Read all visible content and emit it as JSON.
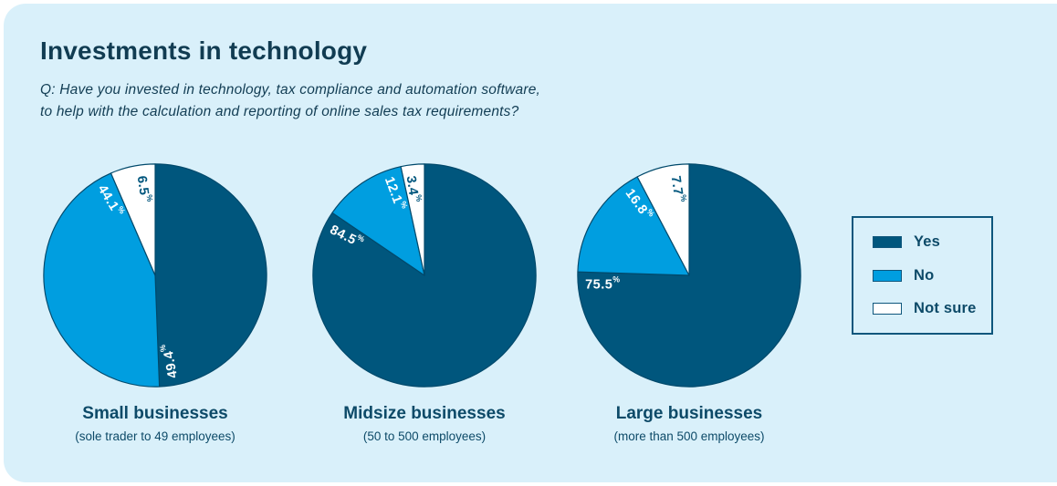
{
  "header": {
    "title": "Investments in technology",
    "question_line1": "Q: Have you invested in technology, tax compliance and automation software,",
    "question_line2": "to help with the calculation and reporting of online sales tax requirements?"
  },
  "colors": {
    "panel_background": "#d9f0fa",
    "yes": "#00567d",
    "no": "#009ee0",
    "not_sure": "#ffffff",
    "outline": "#00496b",
    "heading_text": "#113c52",
    "caption_text": "#0d4a68"
  },
  "chart_data": {
    "type": "pie",
    "title": "Investments in technology",
    "question": "Q: Have you invested in technology, tax compliance and automation software, to help with the calculation and reporting of online sales tax requirements?",
    "categories": [
      "Yes",
      "No",
      "Not sure"
    ],
    "colors": {
      "Yes": "#00567d",
      "No": "#009ee0",
      "Not sure": "#ffffff"
    },
    "label_suffix": "%",
    "start_angle_deg": 0,
    "direction": "clockwise",
    "legend_position": "right",
    "pies": [
      {
        "label": "Small businesses",
        "sublabel": "(sole trader to 49 employees)",
        "values": [
          49.4,
          44.1,
          6.5
        ]
      },
      {
        "label": "Midsize businesses",
        "sublabel": "(50 to 500 employees)",
        "values": [
          84.5,
          12.1,
          3.4
        ]
      },
      {
        "label": "Large businesses",
        "sublabel": "(more than 500 employees)",
        "values": [
          75.5,
          16.8,
          7.7
        ]
      }
    ]
  }
}
